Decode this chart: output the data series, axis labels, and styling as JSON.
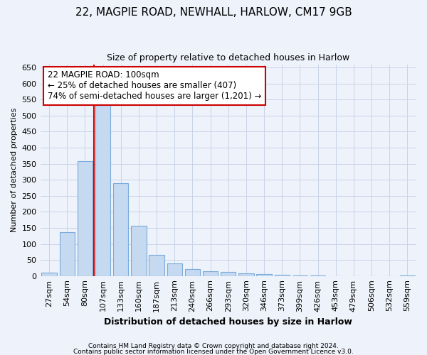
{
  "title1": "22, MAGPIE ROAD, NEWHALL, HARLOW, CM17 9GB",
  "title2": "Size of property relative to detached houses in Harlow",
  "xlabel": "Distribution of detached houses by size in Harlow",
  "ylabel": "Number of detached properties",
  "footer1": "Contains HM Land Registry data © Crown copyright and database right 2024.",
  "footer2": "Contains public sector information licensed under the Open Government Licence v3.0.",
  "bar_labels": [
    "27sqm",
    "54sqm",
    "80sqm",
    "107sqm",
    "133sqm",
    "160sqm",
    "187sqm",
    "213sqm",
    "240sqm",
    "266sqm",
    "293sqm",
    "320sqm",
    "346sqm",
    "373sqm",
    "399sqm",
    "426sqm",
    "453sqm",
    "479sqm",
    "506sqm",
    "532sqm",
    "559sqm"
  ],
  "bar_values": [
    10,
    137,
    358,
    535,
    290,
    157,
    65,
    39,
    22,
    14,
    12,
    9,
    5,
    3,
    2,
    1,
    0,
    0,
    0,
    0,
    2
  ],
  "bar_color": "#c5d9f0",
  "bar_edge_color": "#7aabdb",
  "grid_color": "#c8d4e8",
  "vline_color": "#cc0000",
  "annotation_line1": "22 MAGPIE ROAD: 100sqm",
  "annotation_line2": "← 25% of detached houses are smaller (407)",
  "annotation_line3": "74% of semi-detached houses are larger (1,201) →",
  "annotation_box_color": "white",
  "annotation_box_edge": "#cc0000",
  "ylim": [
    0,
    660
  ],
  "yticks": [
    0,
    50,
    100,
    150,
    200,
    250,
    300,
    350,
    400,
    450,
    500,
    550,
    600,
    650
  ],
  "bg_color": "#eef2fa",
  "title1_fontsize": 11,
  "title2_fontsize": 9
}
